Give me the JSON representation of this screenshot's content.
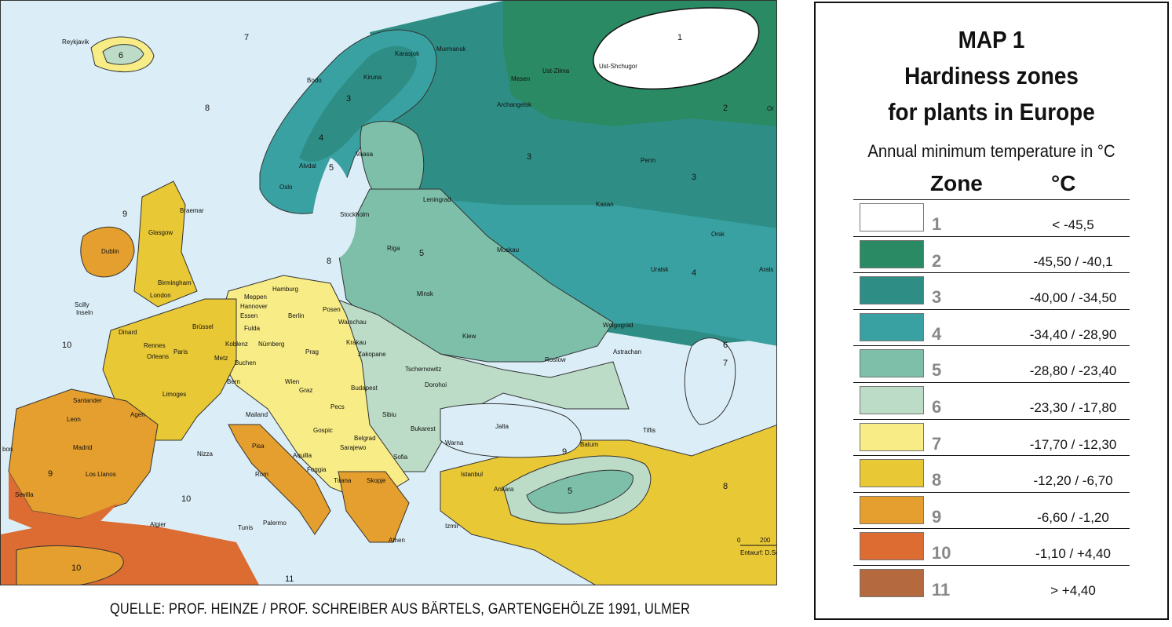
{
  "legend": {
    "title_1": "MAP 1",
    "title_2": "Hardiness zones",
    "title_3": "for plants in Europe",
    "subtitle": "Annual minimum temperature in °C",
    "col_zone": "Zone",
    "col_temp": "°C",
    "rows": [
      {
        "zone": "1",
        "range": "< -45,5",
        "color": "#ffffff"
      },
      {
        "zone": "2",
        "range": "-45,50 / -40,1",
        "color": "#2a8a63"
      },
      {
        "zone": "3",
        "range": "-40,00 / -34,50",
        "color": "#2e8e86"
      },
      {
        "zone": "4",
        "range": "-34,40 / -28,90",
        "color": "#39a1a2"
      },
      {
        "zone": "5",
        "range": "-28,80 / -23,40",
        "color": "#7dbfa9"
      },
      {
        "zone": "6",
        "range": "-23,30 / -17,80",
        "color": "#bcdcc7"
      },
      {
        "zone": "7",
        "range": "-17,70 / -12,30",
        "color": "#f8ec86"
      },
      {
        "zone": "8",
        "range": "-12,20 / -6,70",
        "color": "#e9c836"
      },
      {
        "zone": "9",
        "range": "-6,60 / -1,20",
        "color": "#e59f2e"
      },
      {
        "zone": "10",
        "range": "-1,10 / +4,40",
        "color": "#dc6c32"
      },
      {
        "zone": "11",
        "range": "> +4,40",
        "color": "#b46a3e"
      }
    ]
  },
  "source": "QUELLE: PROF. HEINZE / PROF. SCHREIBER AUS BÄRTELS, GARTENGEHÖLZE 1991, ULMER",
  "map": {
    "sea_zones": {
      "z7": "7",
      "z8a": "8",
      "z8b": "8",
      "z9a": "9",
      "z9b": "9",
      "z10a": "10",
      "z10b": "10",
      "z11": "11",
      "z6": "6"
    },
    "land_zones": {
      "z1": "1",
      "z2": "2",
      "z3a": "3",
      "z3b": "3",
      "z3c": "3",
      "z4a": "4",
      "z4b": "4",
      "z5a": "5",
      "z5b": "5",
      "z5c": "5",
      "z6a": "6",
      "z7a": "7",
      "z8c": "8",
      "z9c": "9",
      "z10c": "10"
    },
    "cities": {
      "reykjavik": "Reykjavik",
      "karasjok": "Karasjok",
      "murmansk": "Murmansk",
      "kiruna": "Kiruna",
      "bodo": "Bodo",
      "mesen": "Mesen",
      "ust_zilma": "Ust-Zilma",
      "ust_shchugor": "Ust-Shchugor",
      "archangelsk": "Archangelsk",
      "vaasa": "Vaasa",
      "alvdal": "Alvdal",
      "oslo": "Oslo",
      "stockholm": "Stockholm",
      "leningrad": "Leningrad",
      "perm": "Perm",
      "braemar": "Braemar",
      "glasgow": "Glasgow",
      "dublin": "Dublin",
      "birmingham": "Birmingham",
      "london": "London",
      "riga": "Riga",
      "moskau": "Moskau",
      "kasan": "Kasan",
      "orsk": "Orsk",
      "uralsk": "Uralsk",
      "hamburg": "Hamburg",
      "meppen": "Meppen",
      "hannover": "Hannover",
      "essen": "Essen",
      "berlin": "Berlin",
      "posen": "Posen",
      "minsk": "Minsk",
      "warschau": "Warschau",
      "kiew": "Kiew",
      "wolgograd": "Wolgograd",
      "astrachan": "Astrachan",
      "rostow": "Rostow",
      "fulda": "Fulda",
      "bruessel": "Brüssel",
      "koblenz": "Koblenz",
      "nuernberg": "Nürnberg",
      "prag": "Prag",
      "krakau": "Krakau",
      "zakopane": "Zakopane",
      "dinard": "Dinard",
      "rennes": "Rennes",
      "paris": "Paris",
      "orleans": "Orleans",
      "metz": "Metz",
      "buchen": "Buchen",
      "wien": "Wien",
      "graz": "Graz",
      "bern": "Bern",
      "tschernowitz": "Tschernowitz",
      "dorohoi": "Dorohoi",
      "budapest": "Budapest",
      "limoges": "Limoges",
      "mailand": "Mailand",
      "agen": "Agen",
      "santander": "Santander",
      "leon": "Leon",
      "madrid": "Madrid",
      "nizza": "Nizza",
      "gospic": "Gospic",
      "pecs": "Pecs",
      "sibiu": "Sibiu",
      "bukarest": "Bukarest",
      "jalta": "Jalta",
      "tiflis": "Tiflis",
      "belgrad": "Belgrad",
      "sarajewo": "Sarajewo",
      "sofia": "Sofia",
      "warna": "Warna",
      "batum": "Batum",
      "pisa": "Pisa",
      "aquilla": "Aquilla",
      "foggia": "Foggia",
      "rom": "Rom",
      "tirana": "Tirana",
      "skopje": "Skopje",
      "istanbul": "Istanbul",
      "ankara": "Ankara",
      "los_llanos": "Los Llanos",
      "sevilla": "Sevilla",
      "algier": "Algier",
      "tunis": "Tunis",
      "palermo": "Palermo",
      "izmir": "Izmir",
      "athen": "Athen",
      "scilly": "Scilly",
      "inseln": "Inseln",
      "lisbon": "bon",
      "ora": "Or",
      "arals": "Arals"
    },
    "scale": {
      "zero": "0",
      "max": "200",
      "credit": "Entwurf: D.Sc"
    }
  }
}
